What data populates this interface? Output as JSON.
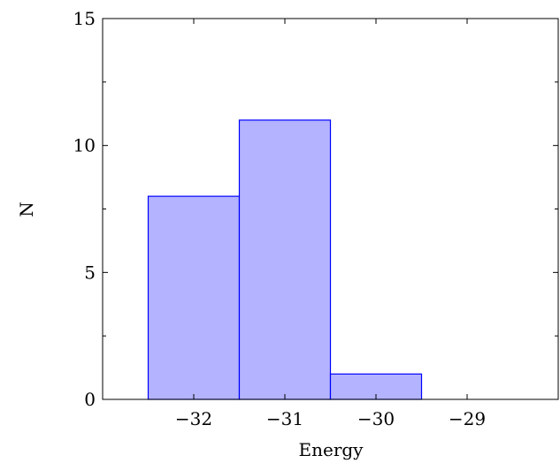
{
  "chart_data": {
    "type": "bar",
    "title": "",
    "xlabel": "Energy",
    "ylabel": "N",
    "bin_edges": [
      -32.5,
      -31.5,
      -30.5,
      -29.5,
      -28.5
    ],
    "values": [
      8,
      11,
      1,
      0
    ],
    "xlim": [
      -33.0,
      -28.0
    ],
    "ylim": [
      0,
      15
    ],
    "x_ticks": [
      -32,
      -31,
      -30,
      -29
    ],
    "x_tick_labels": [
      "−32",
      "−31",
      "−30",
      "−29"
    ],
    "y_ticks": [
      0,
      5,
      10,
      15
    ],
    "y_tick_labels": [
      "0",
      "5",
      "10",
      "15"
    ],
    "grid": false,
    "legend": "none",
    "colors": {
      "bar_fill": "#b3b3ff",
      "bar_stroke": "#0000ff",
      "axis": "#000000"
    }
  }
}
